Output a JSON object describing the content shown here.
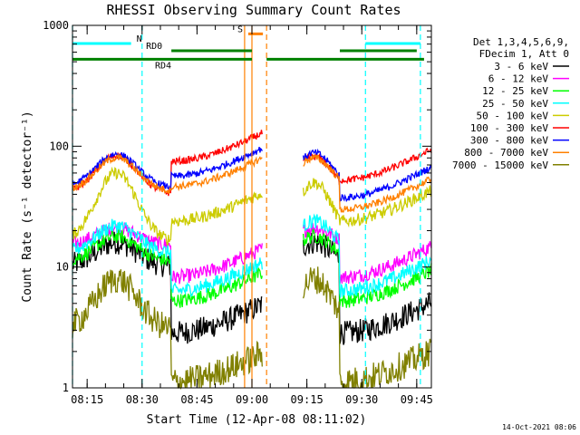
{
  "chart_data": {
    "type": "line",
    "title": "RHESSI Observing Summary Count Rates",
    "xlabel": "Start Time (12-Apr-08 08:11:02)",
    "ylabel": "Count Rate (s⁻¹ detector⁻¹)",
    "x_scale": "time",
    "y_scale": "log",
    "xlim": [
      "08:11",
      "09:49"
    ],
    "ylim": [
      1,
      1000
    ],
    "x_ticks": [
      "08:15",
      "08:30",
      "08:45",
      "09:00",
      "09:15",
      "09:30",
      "09:45"
    ],
    "y_ticks": [
      "1",
      "10",
      "100",
      "1000"
    ],
    "legend_title": [
      "Det 1,3,4,5,6,9,",
      "FDecim 1, Att 0"
    ],
    "legend_position": "right",
    "footer_date": "14-Oct-2021 08:06",
    "data_gaps": [
      [
        "09:03",
        "09:14"
      ]
    ],
    "markers": {
      "night_dashed_lines": [
        "08:11",
        "08:30",
        "09:04",
        "09:31",
        "09:46"
      ],
      "saa_lines": [
        "08:58",
        "09:00"
      ],
      "bars": [
        {
          "label": "N",
          "color": "#00ffff",
          "ranges": [
            [
              "08:11",
              "08:27"
            ],
            [
              "09:31",
              "09:46"
            ]
          ],
          "log_y": 2.85
        },
        {
          "label": "RD0",
          "color": "#008000",
          "ranges": [
            [
              "08:38",
              "09:00"
            ],
            [
              "09:24",
              "09:45"
            ]
          ],
          "log_y": 2.79
        },
        {
          "label": "RD4",
          "color": "#008000",
          "ranges": [
            [
              "08:11",
              "09:00"
            ],
            [
              "09:04",
              "09:47"
            ]
          ],
          "log_y": 2.72
        },
        {
          "label": "S",
          "color": "#ff8000",
          "ranges": [
            [
              "08:59",
              "09:03"
            ]
          ],
          "log_y": 2.93
        }
      ]
    },
    "series": [
      {
        "name": "3 - 6 keV",
        "color": "#000000",
        "orbit1": {
          "base": 10,
          "peak": 16,
          "night": 3.8,
          "noise": 0.1
        },
        "orbit2": {
          "base": 10,
          "peak": 16,
          "night": 3.8,
          "noise": 0.1
        }
      },
      {
        "name": "6 - 12 keV",
        "color": "#ff00ff",
        "orbit1": {
          "base": 15,
          "peak": 21,
          "night": 11,
          "noise": 0.06
        },
        "orbit2": {
          "base": 15,
          "peak": 21,
          "night": 11,
          "noise": 0.06
        }
      },
      {
        "name": "12 - 25 keV",
        "color": "#00ff00",
        "orbit1": {
          "base": 11,
          "peak": 18,
          "night": 7,
          "noise": 0.06
        },
        "orbit2": {
          "base": 11,
          "peak": 18,
          "night": 7,
          "noise": 0.06
        }
      },
      {
        "name": "25 - 50 keV",
        "color": "#00ffff",
        "orbit1": {
          "base": 13,
          "peak": 22,
          "night": 8.5,
          "noise": 0.06
        },
        "orbit2": {
          "base": 13,
          "peak": 24,
          "night": 8.5,
          "noise": 0.06
        }
      },
      {
        "name": "50 - 100 keV",
        "color": "#cccc00",
        "orbit1": {
          "base": 16,
          "peak": 60,
          "night": 32,
          "noise": 0.05
        },
        "orbit2": {
          "base": 16,
          "peak": 50,
          "night": 32,
          "noise": 0.05
        }
      },
      {
        "name": "100 - 300 keV",
        "color": "#ff0000",
        "orbit1": {
          "base": 40,
          "peak": 84,
          "night": 100,
          "noise": 0.03
        },
        "orbit2": {
          "base": 40,
          "peak": 82,
          "night": 70,
          "noise": 0.03
        }
      },
      {
        "name": "300 - 800 keV",
        "color": "#0000ff",
        "orbit1": {
          "base": 45,
          "peak": 86,
          "night": 75,
          "noise": 0.03
        },
        "orbit2": {
          "base": 45,
          "peak": 88,
          "night": 50,
          "noise": 0.03
        }
      },
      {
        "name": "800 - 7000 keV",
        "color": "#ff8000",
        "orbit1": {
          "base": 42,
          "peak": 80,
          "night": 62,
          "noise": 0.03
        },
        "orbit2": {
          "base": 42,
          "peak": 80,
          "night": 40,
          "noise": 0.03
        }
      },
      {
        "name": "7000 - 15000 keV",
        "color": "#808000",
        "orbit1": {
          "base": 3,
          "peak": 8,
          "night": 1.5,
          "noise": 0.12
        },
        "orbit2": {
          "base": 3,
          "peak": 8,
          "night": 1.5,
          "noise": 0.12
        }
      }
    ]
  }
}
